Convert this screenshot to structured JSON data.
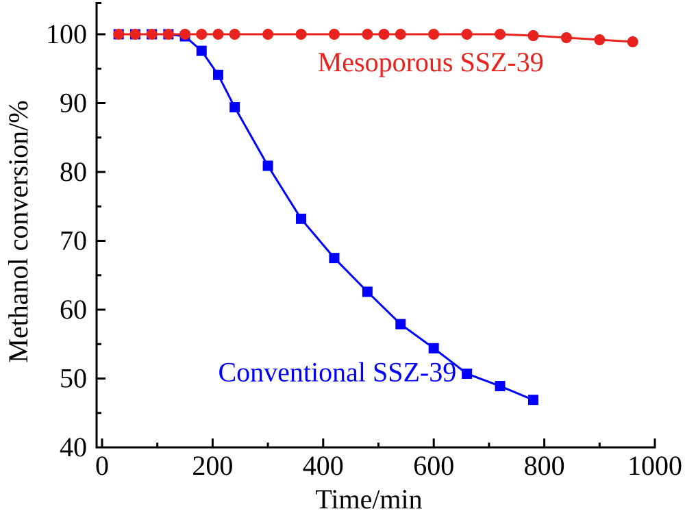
{
  "chart_data": {
    "type": "line",
    "title": "",
    "xlabel": "Time/min",
    "ylabel": "Methanol conversion/%",
    "xlim": [
      -10,
      1000
    ],
    "ylim": [
      40,
      105
    ],
    "xticks": [
      0,
      200,
      400,
      600,
      800,
      1000
    ],
    "xminor_ticks": [
      100,
      300,
      500,
      700,
      900
    ],
    "yticks": [
      40,
      50,
      60,
      70,
      80,
      90,
      100
    ],
    "yminor_ticks": [
      45,
      55,
      65,
      75,
      85,
      95,
      105
    ],
    "grid": false,
    "legend": "inline-annotations",
    "series": [
      {
        "name": "Conventional SSZ-39",
        "color": "#0000ff",
        "marker": "square",
        "label_anchor": {
          "x": 210,
          "y": 51
        },
        "x": [
          30,
          60,
          90,
          120,
          150,
          180,
          210,
          240,
          300,
          360,
          420,
          480,
          540,
          600,
          660,
          720,
          780
        ],
        "values": [
          100,
          100,
          100,
          100,
          99.7,
          97.6,
          94.1,
          89.4,
          80.9,
          73.2,
          67.5,
          62.6,
          57.9,
          54.4,
          50.7,
          48.9,
          46.9
        ]
      },
      {
        "name": "Mesoporous SSZ-39",
        "color": "#e8221c",
        "marker": "circle",
        "label_anchor": {
          "x": 390,
          "y": 96
        },
        "x": [
          30,
          60,
          90,
          120,
          150,
          180,
          210,
          240,
          300,
          360,
          420,
          480,
          510,
          540,
          600,
          660,
          720,
          780,
          840,
          900,
          960
        ],
        "values": [
          100,
          100,
          100,
          100,
          100,
          100,
          100,
          100,
          100,
          100,
          100,
          100,
          100,
          100,
          100,
          100,
          100,
          99.8,
          99.5,
          99.2,
          98.9
        ]
      }
    ]
  }
}
